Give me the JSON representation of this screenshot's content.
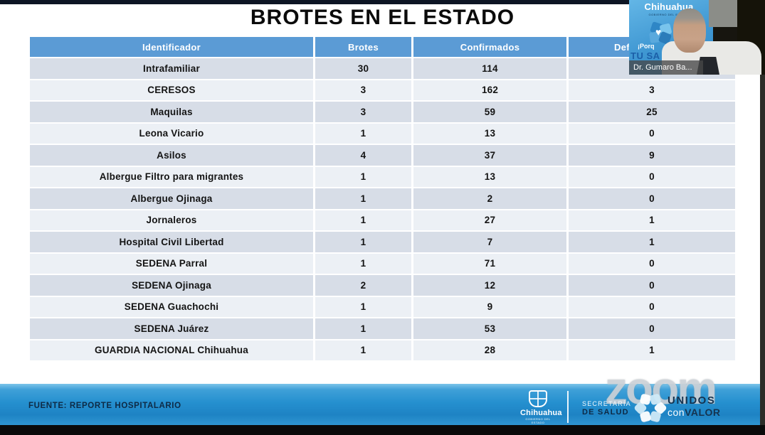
{
  "title": "BROTES EN EL ESTADO",
  "table": {
    "headers": [
      "Identificador",
      "Brotes",
      "Confirmados",
      "Def"
    ],
    "rows": [
      {
        "identificador": "Intrafamiliar",
        "brotes": "30",
        "confirmados": "114",
        "def": ""
      },
      {
        "identificador": "CERESOS",
        "brotes": "3",
        "confirmados": "162",
        "def": "3"
      },
      {
        "identificador": "Maquilas",
        "brotes": "3",
        "confirmados": "59",
        "def": "25"
      },
      {
        "identificador": "Leona Vicario",
        "brotes": "1",
        "confirmados": "13",
        "def": "0"
      },
      {
        "identificador": "Asilos",
        "brotes": "4",
        "confirmados": "37",
        "def": "9"
      },
      {
        "identificador": "Albergue Filtro para migrantes",
        "brotes": "1",
        "confirmados": "13",
        "def": "0"
      },
      {
        "identificador": "Albergue Ojinaga",
        "brotes": "1",
        "confirmados": "2",
        "def": "0"
      },
      {
        "identificador": "Jornaleros",
        "brotes": "1",
        "confirmados": "27",
        "def": "1"
      },
      {
        "identificador": "Hospital Civil Libertad",
        "brotes": "1",
        "confirmados": "7",
        "def": "1"
      },
      {
        "identificador": "SEDENA Parral",
        "brotes": "1",
        "confirmados": "71",
        "def": "0"
      },
      {
        "identificador": "SEDENA Ojinaga",
        "brotes": "2",
        "confirmados": "12",
        "def": "0"
      },
      {
        "identificador": "SEDENA Guachochi",
        "brotes": "1",
        "confirmados": "9",
        "def": "0"
      },
      {
        "identificador": "SEDENA Juárez",
        "brotes": "1",
        "confirmados": "53",
        "def": "0"
      },
      {
        "identificador": "GUARDIA NACIONAL Chihuahua",
        "brotes": "1",
        "confirmados": "28",
        "def": "1"
      }
    ]
  },
  "footer": {
    "source": "FUENTE: REPORTE HOSPITALARIO",
    "chihuahua_name": "Chihuahua",
    "chihuahua_sub": "GOBIERNO DEL ESTADO",
    "secretaria_line1": "SECRETARÍA",
    "secretaria_line2": "DE SALUD",
    "unidos_line1": "UNIDOS",
    "unidos_con": "con",
    "unidos_valor": "VALOR"
  },
  "watermark": "zoom",
  "webcam": {
    "name_label": "Dr. Gumaro Ba...",
    "banner_brand": "Chihuahua",
    "banner_sub": "GOBIERNO DEL ESTADO",
    "banner_slogan1": "¡Porq",
    "banner_slogan2": "TU SA",
    "heart_icon_glyph": "♥"
  },
  "colors": {
    "header_blue": "#5B9BD5",
    "row_dark": "#D7DDE7",
    "row_light": "#ECF0F5",
    "footer_blue": "#2590CF",
    "navy_text": "#0E2A45",
    "title_text": "#0B0B0B"
  }
}
